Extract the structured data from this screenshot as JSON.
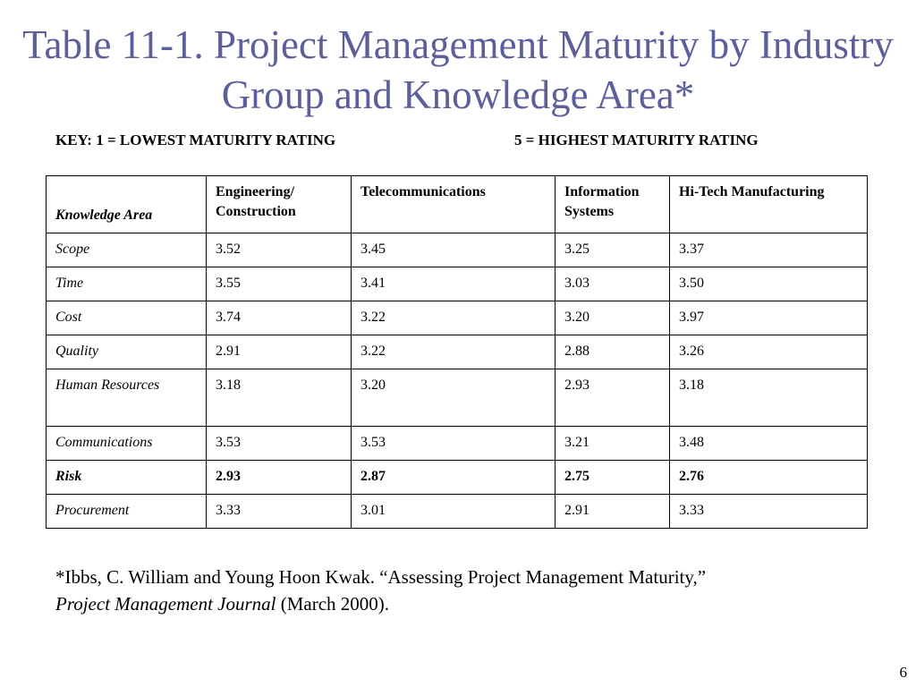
{
  "slide": {
    "title": "Table 11-1. Project Management Maturity by Industry Group and Knowledge Area*",
    "key_low": "KEY: 1 = LOWEST MATURITY RATING",
    "key_high": "5 = HIGHEST MATURITY RATING",
    "page_number": "6"
  },
  "table": {
    "headers": [
      "Knowledge Area",
      "Engineering/ Construction",
      "Telecommunications",
      "Information Systems",
      "Hi-Tech Manufacturing"
    ],
    "rows": [
      {
        "area": "Scope",
        "values": [
          "3.52",
          "3.45",
          "3.25",
          "3.37"
        ]
      },
      {
        "area": "Time",
        "values": [
          "3.55",
          "3.41",
          "3.03",
          "3.50"
        ]
      },
      {
        "area": "Cost",
        "values": [
          "3.74",
          "3.22",
          "3.20",
          "3.97"
        ]
      },
      {
        "area": "Quality",
        "values": [
          "2.91",
          "3.22",
          "2.88",
          "3.26"
        ]
      },
      {
        "area": "Human Resources",
        "values": [
          "3.18",
          "3.20",
          "2.93",
          "3.18"
        ]
      },
      {
        "area": "Communications",
        "values": [
          "3.53",
          "3.53",
          "3.21",
          "3.48"
        ]
      },
      {
        "area": "Risk",
        "values": [
          "2.93",
          "2.87",
          "2.75",
          "2.76"
        ]
      },
      {
        "area": "Procurement",
        "values": [
          "3.33",
          "3.01",
          "2.91",
          "3.33"
        ]
      }
    ]
  },
  "footnote": {
    "citation": "*Ibbs, C. William and Young Hoon Kwak. “Assessing Project Management Maturity,”",
    "journal": "Project Management Journal",
    "date": " (March 2000)."
  },
  "colors": {
    "title": "#5c5f99",
    "text": "#000000",
    "background": "#ffffff"
  }
}
